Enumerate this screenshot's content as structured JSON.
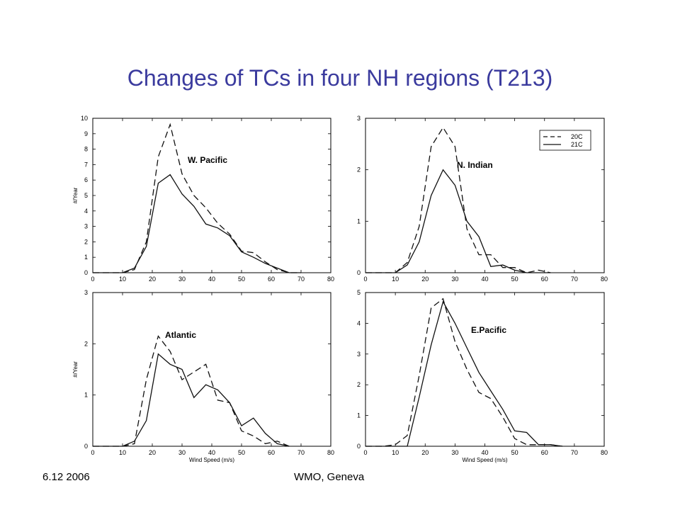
{
  "slide": {
    "title": "Changes of TCs in four NH regions (T213)",
    "footer_left": "6.12 2006",
    "footer_center": "WMO, Geneva"
  },
  "chart_data": [
    {
      "type": "line",
      "region": "W. Pacific",
      "ylabel": "#/Year",
      "xlabel": "",
      "xlim": [
        0,
        80
      ],
      "ylim": [
        0,
        10
      ],
      "xticks": [
        0,
        10,
        20,
        30,
        40,
        50,
        60,
        70,
        80
      ],
      "yticks": [
        0,
        1,
        2,
        3,
        4,
        5,
        6,
        7,
        8,
        9,
        10
      ],
      "x": [
        0,
        10,
        14,
        18,
        22,
        26,
        30,
        34,
        38,
        42,
        46,
        50,
        54,
        58,
        62,
        66,
        70
      ],
      "series": [
        {
          "name": "20C",
          "style": "dashed",
          "values": [
            0,
            0,
            0.2,
            2.0,
            7.5,
            9.6,
            6.4,
            5.0,
            4.2,
            3.2,
            2.5,
            1.4,
            1.3,
            0.7,
            0.2,
            0,
            0
          ]
        },
        {
          "name": "21C",
          "style": "solid",
          "values": [
            0,
            0,
            0.3,
            1.7,
            5.8,
            6.35,
            5.1,
            4.3,
            3.15,
            2.9,
            2.4,
            1.35,
            1.0,
            0.6,
            0.3,
            0,
            0
          ]
        }
      ]
    },
    {
      "type": "line",
      "region": "N. Indian",
      "ylabel": "",
      "xlabel": "",
      "xlim": [
        0,
        80
      ],
      "ylim": [
        0,
        3
      ],
      "xticks": [
        0,
        10,
        20,
        30,
        40,
        50,
        60,
        70,
        80
      ],
      "yticks": [
        0,
        1,
        2,
        3
      ],
      "legend": {
        "position": "top-right",
        "entries": [
          "20C",
          "21C"
        ]
      },
      "x": [
        0,
        10,
        14,
        18,
        22,
        26,
        30,
        34,
        38,
        42,
        46,
        50,
        54,
        58,
        62
      ],
      "series": [
        {
          "name": "20C",
          "style": "dashed",
          "values": [
            0,
            0,
            0.2,
            0.9,
            2.45,
            2.82,
            2.45,
            0.85,
            0.35,
            0.35,
            0.1,
            0.1,
            0,
            0.05,
            0
          ]
        },
        {
          "name": "21C",
          "style": "solid",
          "values": [
            0,
            0,
            0.15,
            0.6,
            1.5,
            2.0,
            1.7,
            1.0,
            0.7,
            0.12,
            0.15,
            0.05,
            0,
            0,
            0
          ]
        }
      ]
    },
    {
      "type": "line",
      "region": "Atlantic",
      "ylabel": "#/Year",
      "xlabel": "Wind Speed (m/s)",
      "xlim": [
        0,
        80
      ],
      "ylim": [
        0,
        3
      ],
      "xticks": [
        0,
        10,
        20,
        30,
        40,
        50,
        60,
        70,
        80
      ],
      "yticks": [
        0,
        1,
        2,
        3
      ],
      "x": [
        0,
        10,
        14,
        18,
        22,
        26,
        30,
        34,
        38,
        42,
        46,
        50,
        54,
        58,
        62,
        66
      ],
      "series": [
        {
          "name": "20C",
          "style": "dashed",
          "values": [
            0,
            0,
            0.05,
            1.3,
            2.15,
            1.85,
            1.3,
            1.45,
            1.6,
            0.9,
            0.85,
            0.3,
            0.2,
            0.05,
            0.1,
            0
          ]
        },
        {
          "name": "21C",
          "style": "solid",
          "values": [
            0,
            0,
            0.1,
            0.5,
            1.8,
            1.6,
            1.5,
            0.95,
            1.2,
            1.1,
            0.85,
            0.4,
            0.55,
            0.25,
            0.05,
            0
          ]
        }
      ]
    },
    {
      "type": "line",
      "region": "E.Pacific",
      "ylabel": "",
      "xlabel": "Wind Speed (m/s)",
      "xlim": [
        0,
        80
      ],
      "ylim": [
        0,
        5
      ],
      "xticks": [
        0,
        10,
        20,
        30,
        40,
        50,
        60,
        70,
        80
      ],
      "yticks": [
        0,
        1,
        2,
        3,
        4,
        5
      ],
      "x": [
        0,
        6,
        10,
        14,
        18,
        22,
        26,
        30,
        34,
        38,
        42,
        46,
        50,
        54,
        58,
        62,
        66
      ],
      "series": [
        {
          "name": "20C",
          "style": "dashed",
          "values": [
            0,
            0,
            0.05,
            0.35,
            2.3,
            4.5,
            4.8,
            3.4,
            2.5,
            1.75,
            1.55,
            0.95,
            0.25,
            0.05,
            0.05,
            0.05,
            0
          ]
        },
        {
          "name": "21C",
          "style": "solid",
          "values": [
            0,
            0,
            0,
            0,
            1.6,
            3.3,
            4.7,
            4.0,
            3.2,
            2.4,
            1.8,
            1.2,
            0.5,
            0.45,
            0.05,
            0.05,
            0
          ]
        }
      ]
    }
  ]
}
